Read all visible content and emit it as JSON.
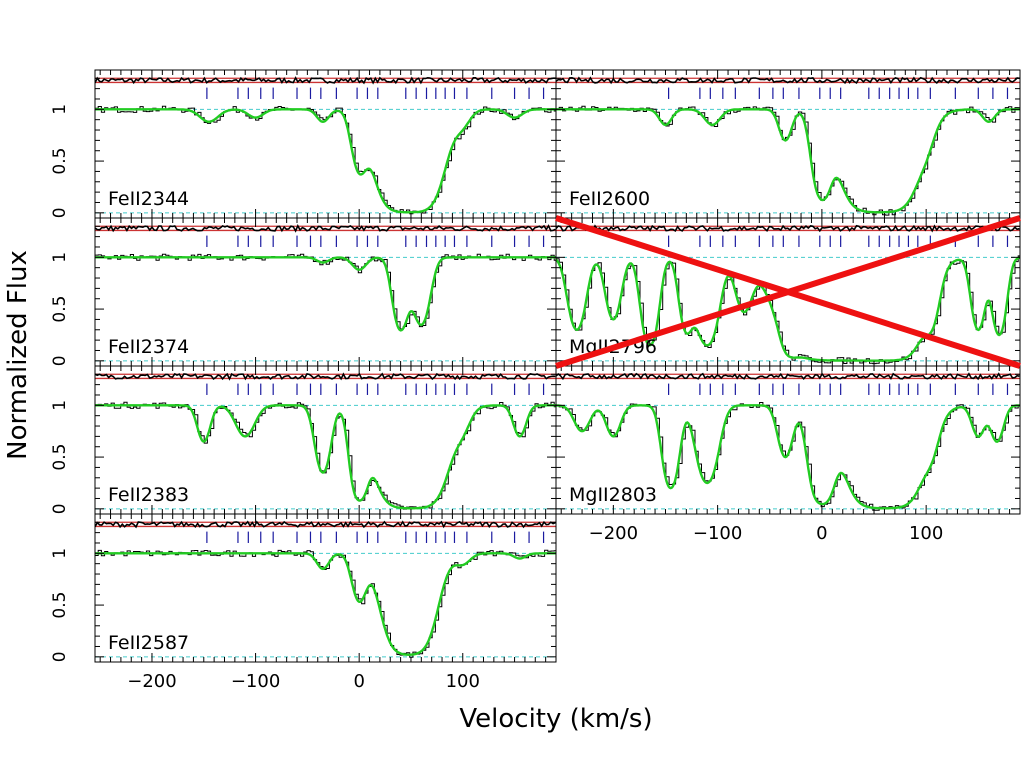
{
  "chart_data": {
    "type": "line",
    "xlabel": "Velocity (km/s)",
    "ylabel": "Normalized Flux",
    "xlim": [
      -255,
      190
    ],
    "ylim": [
      -0.05,
      1.38
    ],
    "x_ticks": [
      -200,
      -100,
      0,
      100
    ],
    "y_ticks": [
      0,
      0.5,
      1
    ],
    "y_tick_labels": [
      "0",
      "0.5",
      "1"
    ],
    "component_velocities": [
      -147,
      -117,
      -107,
      -95,
      -83,
      -60,
      -47,
      -37,
      -22,
      -2,
      8,
      18,
      45,
      55,
      65,
      74,
      83,
      92,
      104,
      128,
      150,
      164,
      178
    ],
    "panels": [
      {
        "label": "FeII2344",
        "col": 0,
        "row": 0,
        "crossed_out": false,
        "features": [
          {
            "v": -145,
            "depth": 0.12,
            "w": 12
          },
          {
            "v": -100,
            "depth": 0.08,
            "w": 10
          },
          {
            "v": -35,
            "depth": 0.12,
            "w": 8
          },
          {
            "v": 0,
            "depth": 0.55,
            "w": 9
          },
          {
            "v": 48,
            "depth": 1.0,
            "w": 26
          },
          {
            "v": 100,
            "depth": 0.12,
            "w": 10
          },
          {
            "v": 150,
            "depth": 0.08,
            "w": 10
          }
        ]
      },
      {
        "label": "FeII2374",
        "col": 0,
        "row": 1,
        "crossed_out": false,
        "features": [
          {
            "v": -35,
            "depth": 0.05,
            "w": 8
          },
          {
            "v": 0,
            "depth": 0.12,
            "w": 9
          },
          {
            "v": 40,
            "depth": 0.7,
            "w": 9
          },
          {
            "v": 60,
            "depth": 0.65,
            "w": 10
          }
        ]
      },
      {
        "label": "FeII2383",
        "col": 0,
        "row": 2,
        "crossed_out": false,
        "features": [
          {
            "v": -150,
            "depth": 0.35,
            "w": 8
          },
          {
            "v": -110,
            "depth": 0.3,
            "w": 12
          },
          {
            "v": -35,
            "depth": 0.65,
            "w": 9
          },
          {
            "v": 0,
            "depth": 0.9,
            "w": 9
          },
          {
            "v": 50,
            "depth": 1.0,
            "w": 28
          },
          {
            "v": 100,
            "depth": 0.15,
            "w": 10
          },
          {
            "v": 155,
            "depth": 0.3,
            "w": 8
          }
        ]
      },
      {
        "label": "FeII2587",
        "col": 0,
        "row": 3,
        "crossed_out": false,
        "features": [
          {
            "v": -35,
            "depth": 0.15,
            "w": 8
          },
          {
            "v": 0,
            "depth": 0.45,
            "w": 9
          },
          {
            "v": 48,
            "depth": 0.98,
            "w": 22
          },
          {
            "v": 100,
            "depth": 0.1,
            "w": 10
          },
          {
            "v": 155,
            "depth": 0.05,
            "w": 8
          }
        ]
      },
      {
        "label": "FeII2600",
        "col": 1,
        "row": 0,
        "crossed_out": false,
        "features": [
          {
            "v": -150,
            "depth": 0.15,
            "w": 8
          },
          {
            "v": -105,
            "depth": 0.15,
            "w": 10
          },
          {
            "v": -35,
            "depth": 0.3,
            "w": 8
          },
          {
            "v": 0,
            "depth": 0.85,
            "w": 10
          },
          {
            "v": 55,
            "depth": 1.0,
            "w": 30
          },
          {
            "v": 100,
            "depth": 0.15,
            "w": 10
          },
          {
            "v": 160,
            "depth": 0.12,
            "w": 8
          }
        ]
      },
      {
        "label": "MgII2796",
        "col": 1,
        "row": 1,
        "crossed_out": true,
        "features": [
          {
            "v": -235,
            "depth": 0.7,
            "w": 10
          },
          {
            "v": -200,
            "depth": 0.6,
            "w": 9
          },
          {
            "v": -165,
            "depth": 0.85,
            "w": 9
          },
          {
            "v": -130,
            "depth": 0.7,
            "w": 8
          },
          {
            "v": -110,
            "depth": 0.85,
            "w": 12
          },
          {
            "v": -75,
            "depth": 0.5,
            "w": 10
          },
          {
            "v": -30,
            "depth": 0.75,
            "w": 9
          },
          {
            "v": 10,
            "depth": 1.0,
            "w": 40
          },
          {
            "v": 60,
            "depth": 1.0,
            "w": 30
          },
          {
            "v": 105,
            "depth": 0.5,
            "w": 9
          },
          {
            "v": 150,
            "depth": 0.7,
            "w": 8
          },
          {
            "v": 170,
            "depth": 0.75,
            "w": 8
          }
        ]
      },
      {
        "label": "MgII2803",
        "col": 1,
        "row": 2,
        "crossed_out": false,
        "features": [
          {
            "v": -230,
            "depth": 0.25,
            "w": 10
          },
          {
            "v": -200,
            "depth": 0.3,
            "w": 9
          },
          {
            "v": -145,
            "depth": 0.8,
            "w": 9
          },
          {
            "v": -110,
            "depth": 0.75,
            "w": 12
          },
          {
            "v": -35,
            "depth": 0.5,
            "w": 9
          },
          {
            "v": 0,
            "depth": 0.95,
            "w": 12
          },
          {
            "v": 60,
            "depth": 1.0,
            "w": 30
          },
          {
            "v": 105,
            "depth": 0.25,
            "w": 9
          },
          {
            "v": 150,
            "depth": 0.3,
            "w": 8
          },
          {
            "v": 168,
            "depth": 0.35,
            "w": 8
          }
        ]
      }
    ]
  },
  "colors": {
    "model_fit": "#22cc22",
    "data": "#000000",
    "residual_band": "#cc3333",
    "component_tick": "#1a1aa0",
    "zero_line": "#44cccc",
    "cross_out": "#ee1111"
  }
}
